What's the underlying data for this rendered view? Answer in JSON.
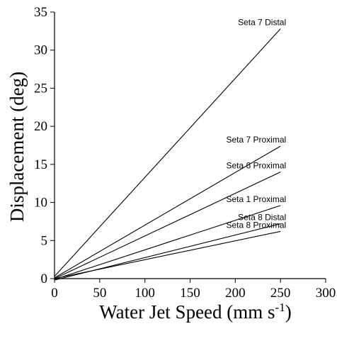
{
  "chart_data": {
    "type": "line",
    "title": "",
    "xlabel": "Water Jet Speed (mm s",
    "xlabel_sup": "-1",
    "xlabel_close": ")",
    "ylabel": "Displacement (deg)",
    "xlim": [
      0,
      300
    ],
    "ylim": [
      0,
      35
    ],
    "xticks": [
      0,
      50,
      100,
      150,
      200,
      250,
      300
    ],
    "yticks": [
      0,
      5,
      10,
      15,
      20,
      25,
      30,
      35
    ],
    "grid": false,
    "legend": "none",
    "series": [
      {
        "name": "Seta 7 Distal",
        "x": [
          0,
          250
        ],
        "y": [
          0.3,
          32.8
        ]
      },
      {
        "name": "Seta 7 Proximal",
        "x": [
          0,
          250
        ],
        "y": [
          0.1,
          17.4
        ]
      },
      {
        "name": "Seta 6 Proximal",
        "x": [
          0,
          250
        ],
        "y": [
          0.0,
          14.0
        ]
      },
      {
        "name": "Seta 1 Proximal",
        "x": [
          0,
          250
        ],
        "y": [
          -0.1,
          9.6
        ]
      },
      {
        "name": "Seta 8 Distal",
        "x": [
          0,
          250
        ],
        "y": [
          -0.2,
          7.2
        ]
      },
      {
        "name": "Seta 8 Proximal",
        "x": [
          0,
          250
        ],
        "y": [
          0.0,
          6.2
        ]
      }
    ]
  }
}
